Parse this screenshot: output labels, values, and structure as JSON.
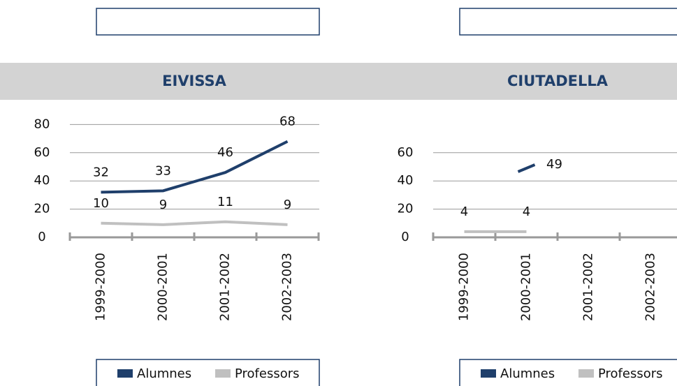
{
  "chart_data": [
    {
      "type": "line",
      "title": "EIVISSA",
      "categories": [
        "1999-2000",
        "2000-2001",
        "2001-2002",
        "2002-2003"
      ],
      "series": [
        {
          "name": "Alumnes",
          "color": "#1f3f6b",
          "values": [
            32,
            33,
            46,
            68
          ]
        },
        {
          "name": "Professors",
          "color": "#c0c0c0",
          "values": [
            10,
            9,
            11,
            9
          ]
        }
      ],
      "ylim": [
        0,
        80
      ],
      "yticks": [
        0,
        20,
        40,
        60,
        80
      ],
      "grid": true
    },
    {
      "type": "line",
      "title": "CIUTADELLA",
      "categories": [
        "1999-2000",
        "2000-2001",
        "2001-2002",
        "2002-2003"
      ],
      "series": [
        {
          "name": "Alumnes",
          "color": "#1f3f6b",
          "values": [
            null,
            49,
            null,
            null
          ]
        },
        {
          "name": "Professors",
          "color": "#c0c0c0",
          "values": [
            4,
            4,
            null,
            null
          ]
        }
      ],
      "ylim": [
        0,
        60
      ],
      "yticks": [
        0,
        20,
        40,
        60
      ],
      "grid": true
    }
  ]
}
